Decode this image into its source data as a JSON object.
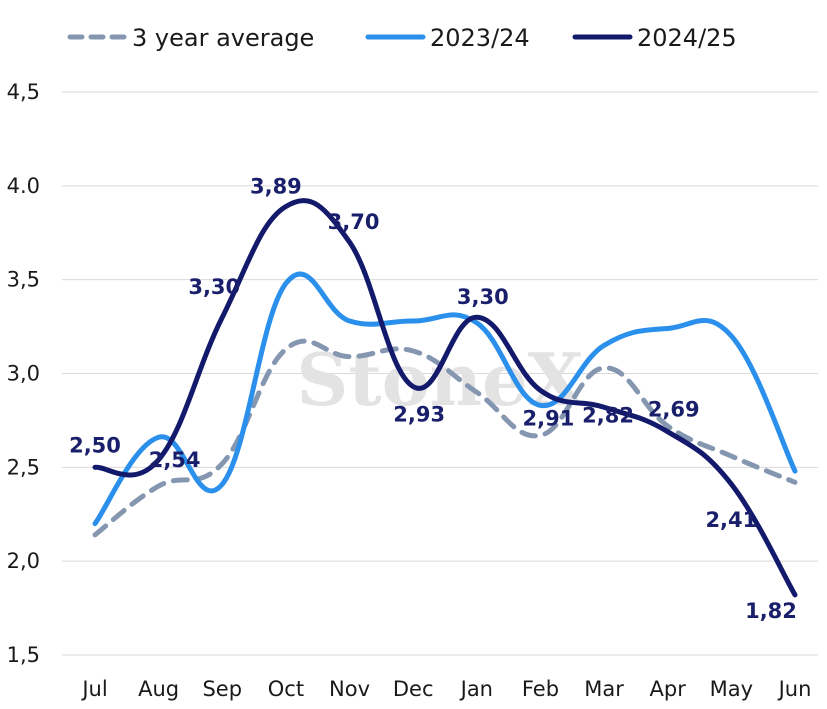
{
  "watermark": "StoneX",
  "chart_data": {
    "type": "line",
    "categories": [
      "Jul",
      "Aug",
      "Sep",
      "Oct",
      "Nov",
      "Dec",
      "Jan",
      "Feb",
      "Mar",
      "Apr",
      "May",
      "Jun"
    ],
    "y_tick_labels": [
      "1,5",
      "2,0",
      "2,5",
      "3,0",
      "3,5",
      "4.0",
      "4,5"
    ],
    "ylim": [
      1.5,
      4.5
    ],
    "grid": "horizontal",
    "legend_position": "top",
    "series": [
      {
        "name": "3 year average",
        "style": "dashed",
        "color": "#8496b0",
        "values": [
          2.14,
          2.4,
          2.52,
          3.13,
          3.09,
          3.12,
          2.9,
          2.67,
          3.03,
          2.72,
          2.56,
          2.42
        ],
        "labels": [
          "",
          "",
          "",
          "",
          "",
          "",
          "",
          "",
          "",
          "",
          "",
          ""
        ]
      },
      {
        "name": "2023/24",
        "style": "solid",
        "color": "#2b8fec",
        "values": [
          2.2,
          2.66,
          2.41,
          3.48,
          3.28,
          3.28,
          3.27,
          2.83,
          3.15,
          3.24,
          3.2,
          2.48
        ],
        "labels": [
          "",
          "",
          "",
          "",
          "",
          "",
          "",
          "",
          "",
          "",
          "",
          ""
        ]
      },
      {
        "name": "2024/25",
        "style": "solid",
        "color": "#131a6b",
        "values": [
          2.5,
          2.54,
          3.3,
          3.89,
          3.7,
          2.93,
          3.3,
          2.91,
          2.82,
          2.69,
          2.41,
          1.82
        ],
        "labels": [
          "2,50",
          "2,54",
          "3,30",
          "3,89",
          "3,70",
          "2,93",
          "3,30",
          "2,91",
          "2,82",
          "2,69",
          "2,41",
          "1,82"
        ]
      }
    ]
  }
}
